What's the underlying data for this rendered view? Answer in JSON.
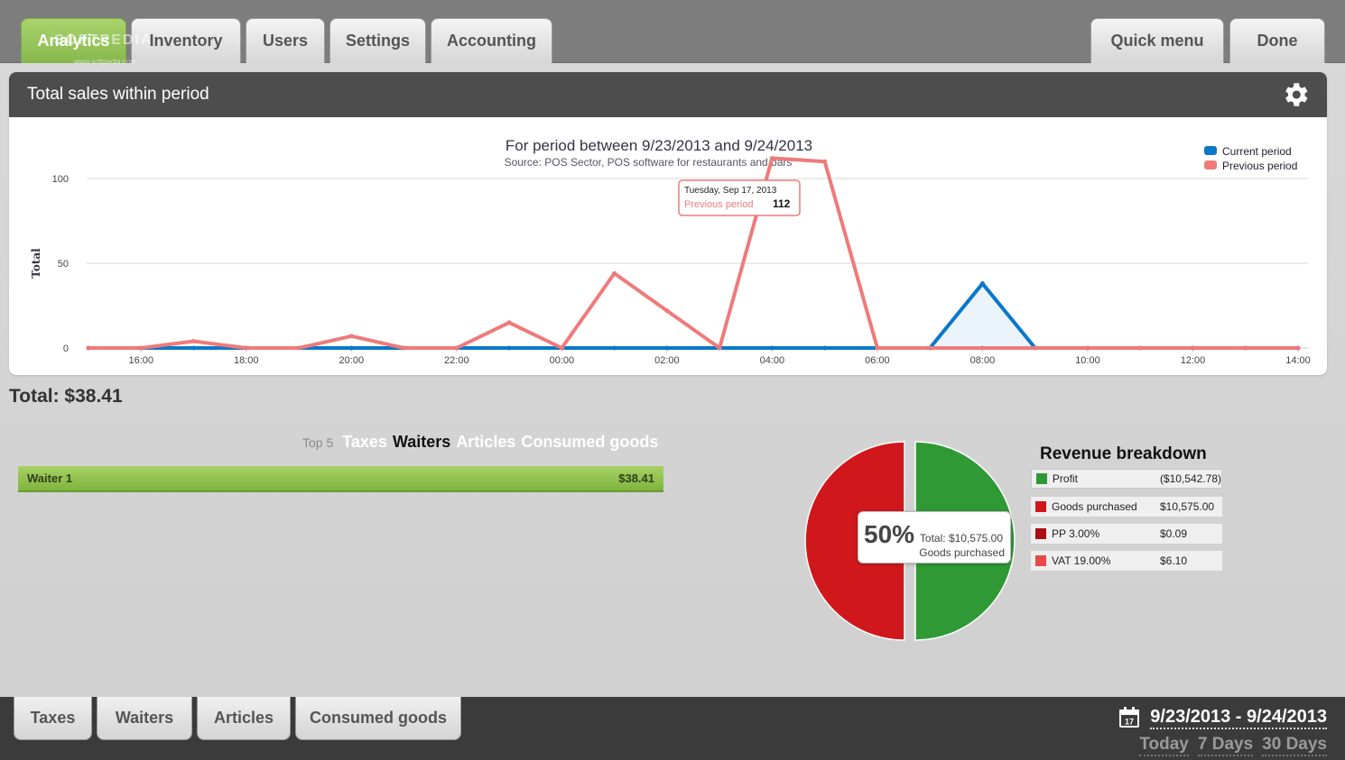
{
  "top_tabs": [
    {
      "label": "Analytics",
      "active": true
    },
    {
      "label": "Inventory",
      "active": false
    },
    {
      "label": "Users",
      "active": false
    },
    {
      "label": "Settings",
      "active": false
    },
    {
      "label": "Accounting",
      "active": false
    }
  ],
  "top_right_buttons": {
    "quick_menu": "Quick menu",
    "done": "Done"
  },
  "watermark": {
    "brand": "SOFTPEDIA",
    "url": "www.softpedia.com"
  },
  "panel": {
    "title": "Total sales within period"
  },
  "chart_data": {
    "type": "line",
    "title": "For period between 9/23/2013 and 9/24/2013",
    "subtitle": "Source: POS Sector, POS software for restaurants and bars",
    "ylabel": "Total",
    "xlabel": "",
    "ylim": [
      0,
      100
    ],
    "yticks": [
      0,
      50,
      100
    ],
    "xticks": [
      "16:00",
      "18:00",
      "20:00",
      "22:00",
      "00:00",
      "02:00",
      "04:00",
      "06:00",
      "08:00",
      "10:00",
      "12:00",
      "14:00"
    ],
    "x": [
      "15:00",
      "16:00",
      "17:00",
      "18:00",
      "19:00",
      "20:00",
      "21:00",
      "22:00",
      "23:00",
      "00:00",
      "01:00",
      "02:00",
      "03:00",
      "04:00",
      "05:00",
      "06:00",
      "07:00",
      "08:00",
      "09:00",
      "10:00",
      "11:00",
      "12:00",
      "13:00",
      "14:00"
    ],
    "series": [
      {
        "name": "Current period",
        "color": "#0b78c9",
        "values": [
          0,
          0,
          0,
          0,
          0,
          0,
          0,
          0,
          0,
          0,
          0,
          0,
          0,
          0,
          0,
          0,
          0,
          38,
          0,
          0,
          0,
          0,
          0,
          0
        ]
      },
      {
        "name": "Previous period",
        "color": "#ef7a7a",
        "values": [
          0,
          0,
          4,
          0,
          0,
          7,
          0,
          0,
          15,
          0,
          44,
          22,
          0,
          112,
          110,
          0,
          0,
          0,
          0,
          0,
          0,
          0,
          0,
          0
        ]
      }
    ],
    "legend_position": "top-right",
    "tooltip": {
      "date": "Tuesday, Sep 17, 2013",
      "series": "Previous period",
      "value": "112"
    }
  },
  "summary": {
    "total": "Total: $38.41"
  },
  "top5": {
    "label": "Top 5",
    "options": [
      {
        "label": "Taxes",
        "selected": false
      },
      {
        "label": "Waiters",
        "selected": true
      },
      {
        "label": "Articles",
        "selected": false
      },
      {
        "label": "Consumed goods",
        "selected": false
      }
    ],
    "rows": [
      {
        "name": "Waiter 1",
        "value": "$38.41"
      }
    ]
  },
  "revenue": {
    "title": "Revenue breakdown",
    "items": [
      {
        "label": "Profit",
        "value": "($10,542.78)",
        "color": "#2f9a35"
      },
      {
        "label": "Goods purchased",
        "value": "$10,575.00",
        "color": "#d0181c"
      },
      {
        "label": "PP 3.00%",
        "value": "$0.09",
        "color": "#a80e12"
      },
      {
        "label": "VAT 19.00%",
        "value": "$6.10",
        "color": "#e8494c"
      }
    ],
    "pie": [
      {
        "name": "Goods purchased",
        "share": 0.5,
        "color": "#d0181c"
      },
      {
        "name": "Profit",
        "share": 0.5,
        "color": "#2f9a35"
      }
    ],
    "tooltip": {
      "percent": "50%",
      "total": "Total: $10,575.00",
      "name": "Goods purchased"
    }
  },
  "bottom_tabs": [
    "Taxes",
    "Waiters",
    "Articles",
    "Consumed goods"
  ],
  "date": {
    "range": "9/23/2013 - 9/24/2013",
    "calendar_day": "17",
    "quick": [
      "Today",
      "7 Days",
      "30 Days"
    ]
  }
}
